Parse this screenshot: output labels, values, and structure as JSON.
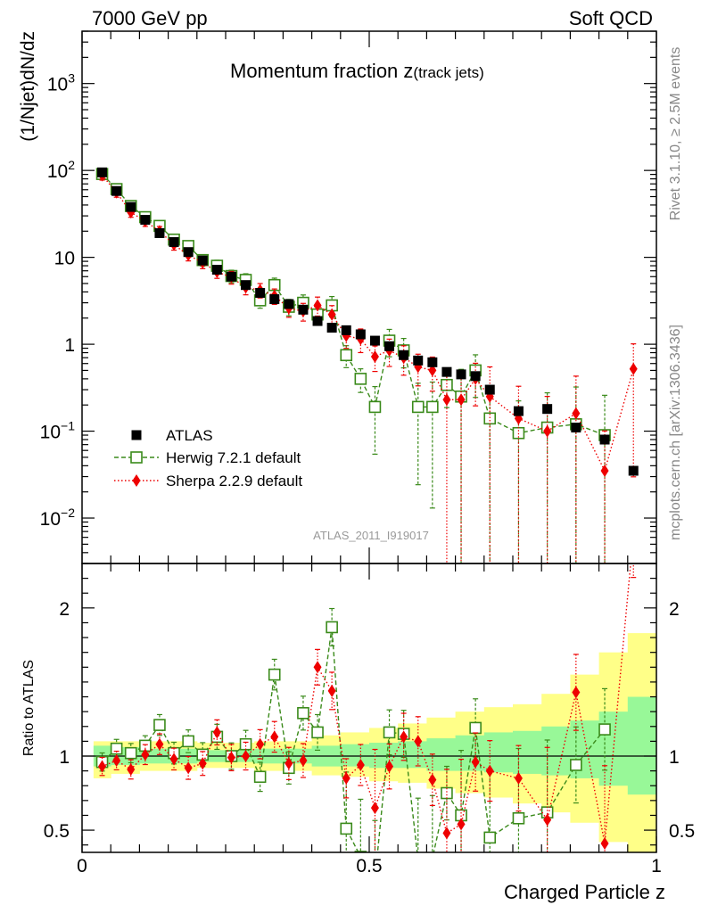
{
  "header": {
    "left": "7000 GeV pp",
    "right": "Soft QCD"
  },
  "side_text": {
    "rivet": "Rivet 3.1.10, ≥ 2.5M events",
    "mcplots": "mcplots.cern.ch [arXiv:1306.3436]"
  },
  "analysis_id": "ATLAS_2011_I919017",
  "chart_data": {
    "type": "scatter",
    "title": "Momentum fraction z(track jets)",
    "title_main": "Momentum fraction z",
    "title_sub": "(track jets)",
    "xlabel": "Charged Particle z",
    "ylabel": "(1/Njet)dN/dz",
    "ratio_ylabel": "Ratio to ATLAS",
    "yscale": "log",
    "xlim": [
      0,
      1
    ],
    "ylim": [
      0.003,
      4000
    ],
    "ratio_ylim": [
      0.35,
      2.3
    ],
    "x_ticks": [
      "0",
      "0.5",
      "1"
    ],
    "y_ticks": [
      {
        "value": 0.01,
        "base": "10",
        "exp": "−2"
      },
      {
        "value": 0.1,
        "base": "10",
        "exp": "−1"
      },
      {
        "value": 1,
        "base": "1",
        "exp": ""
      },
      {
        "value": 10,
        "base": "10",
        "exp": ""
      },
      {
        "value": 100,
        "base": "10",
        "exp": "2"
      },
      {
        "value": 1000,
        "base": "10",
        "exp": "3"
      }
    ],
    "ratio_ticks": [
      "0.5",
      "1",
      "2"
    ],
    "legend_position": "middle-left",
    "colors": {
      "atlas": "#000000",
      "herwig": "#3a8a1a",
      "sherpa": "#ee0000",
      "band_inner": "#98f898",
      "band_outer": "#ffff88"
    },
    "series": [
      {
        "name": "ATLAS",
        "x": [
          0.035,
          0.06,
          0.085,
          0.11,
          0.135,
          0.16,
          0.185,
          0.21,
          0.235,
          0.26,
          0.285,
          0.31,
          0.335,
          0.36,
          0.385,
          0.41,
          0.435,
          0.46,
          0.485,
          0.51,
          0.535,
          0.56,
          0.585,
          0.61,
          0.635,
          0.66,
          0.685,
          0.71,
          0.76,
          0.81,
          0.86,
          0.91,
          0.96
        ],
        "y": [
          95,
          58,
          38,
          27,
          19,
          15,
          11.5,
          9.2,
          7.2,
          6,
          4.8,
          3.9,
          3.3,
          2.9,
          2.5,
          1.85,
          1.55,
          1.45,
          1.3,
          1.1,
          0.95,
          0.75,
          0.65,
          0.62,
          0.48,
          0.45,
          0.43,
          0.3,
          0.17,
          0.18,
          0.11,
          0.08,
          0.035
        ]
      },
      {
        "name": "Herwig 7.2.1 default",
        "x": [
          0.035,
          0.06,
          0.085,
          0.11,
          0.135,
          0.16,
          0.185,
          0.21,
          0.235,
          0.26,
          0.285,
          0.31,
          0.335,
          0.36,
          0.385,
          0.41,
          0.435,
          0.46,
          0.485,
          0.51,
          0.535,
          0.56,
          0.585,
          0.61,
          0.635,
          0.66,
          0.685,
          0.71,
          0.76,
          0.81,
          0.86,
          0.91
        ],
        "y": [
          91,
          61,
          39,
          29,
          23,
          16,
          13.5,
          9.3,
          8,
          6.1,
          5.5,
          3.2,
          4.8,
          2.7,
          3,
          2.2,
          2.8,
          0.75,
          0.4,
          0.19,
          1.1,
          0.85,
          0.19,
          0.19,
          0.34,
          0.25,
          0.5,
          0.14,
          0.095,
          0.11,
          0.12,
          0.09
        ]
      },
      {
        "name": "Sherpa 2.2.9 default",
        "x": [
          0.035,
          0.06,
          0.085,
          0.11,
          0.135,
          0.16,
          0.185,
          0.21,
          0.235,
          0.26,
          0.285,
          0.31,
          0.335,
          0.36,
          0.385,
          0.41,
          0.435,
          0.46,
          0.485,
          0.51,
          0.535,
          0.56,
          0.585,
          0.61,
          0.635,
          0.66,
          0.685,
          0.71,
          0.76,
          0.81,
          0.86,
          0.91,
          0.96
        ],
        "y": [
          88,
          56,
          33,
          26,
          20,
          14,
          10.6,
          8.7,
          6.8,
          5.9,
          4.5,
          4.2,
          3.6,
          2.6,
          2.4,
          2.8,
          2.2,
          1.25,
          1.15,
          0.72,
          0.85,
          0.7,
          0.55,
          0.5,
          0.23,
          0.23,
          0.4,
          0.25,
          0.14,
          0.1,
          0.16,
          0.035,
          0.52
        ]
      }
    ],
    "ratio_series": [
      {
        "name": "Herwig 7.2.1 default",
        "x": [
          0.035,
          0.06,
          0.085,
          0.11,
          0.135,
          0.16,
          0.185,
          0.21,
          0.235,
          0.26,
          0.285,
          0.31,
          0.335,
          0.36,
          0.385,
          0.41,
          0.435,
          0.46,
          0.485,
          0.51,
          0.535,
          0.56,
          0.585,
          0.61,
          0.635,
          0.66,
          0.685,
          0.71,
          0.76,
          0.81,
          0.86,
          0.91
        ],
        "y": [
          0.96,
          1.05,
          1.02,
          1.07,
          1.21,
          1.02,
          1.1,
          1.01,
          1.13,
          1.0,
          1.08,
          0.86,
          1.55,
          0.92,
          1.29,
          1.16,
          1.87,
          0.51,
          0.32,
          0.17,
          1.16,
          1.15,
          0.3,
          0.31,
          0.75,
          0.6,
          1.19,
          0.45,
          0.58,
          0.62,
          0.94,
          1.18
        ]
      },
      {
        "name": "Sherpa 2.2.9 default",
        "x": [
          0.035,
          0.06,
          0.085,
          0.11,
          0.135,
          0.16,
          0.185,
          0.21,
          0.235,
          0.26,
          0.285,
          0.31,
          0.335,
          0.36,
          0.385,
          0.41,
          0.435,
          0.46,
          0.485,
          0.51,
          0.535,
          0.56,
          0.585,
          0.61,
          0.635,
          0.66,
          0.685,
          0.71,
          0.76,
          0.81,
          0.86,
          0.91,
          0.96
        ],
        "y": [
          0.93,
          0.97,
          0.91,
          1.01,
          1.08,
          0.98,
          0.92,
          0.95,
          1.16,
          0.99,
          1.0,
          1.08,
          1.13,
          0.95,
          0.97,
          1.6,
          1.44,
          0.85,
          0.94,
          0.65,
          0.93,
          1.13,
          1.1,
          0.84,
          0.48,
          0.54,
          0.96,
          0.9,
          0.85,
          0.57,
          1.43,
          0.41,
          2.5
        ]
      }
    ],
    "bands": {
      "x_edges": [
        0.02,
        0.05,
        0.1,
        0.2,
        0.3,
        0.4,
        0.45,
        0.5,
        0.55,
        0.6,
        0.65,
        0.7,
        0.75,
        0.8,
        0.85,
        0.9,
        0.95,
        1.0
      ],
      "inner_low": [
        0.93,
        0.94,
        0.95,
        0.96,
        0.95,
        0.93,
        0.93,
        0.92,
        0.92,
        0.9,
        0.9,
        0.89,
        0.88,
        0.87,
        0.85,
        0.8,
        0.74
      ],
      "inner_high": [
        1.07,
        1.06,
        1.05,
        1.04,
        1.05,
        1.07,
        1.08,
        1.09,
        1.1,
        1.12,
        1.14,
        1.16,
        1.17,
        1.2,
        1.24,
        1.3,
        1.4
      ],
      "outer_low": [
        0.85,
        0.88,
        0.9,
        0.92,
        0.9,
        0.87,
        0.86,
        0.83,
        0.82,
        0.78,
        0.75,
        0.72,
        0.68,
        0.62,
        0.55,
        0.42,
        0.35
      ],
      "outer_high": [
        1.1,
        1.1,
        1.1,
        1.09,
        1.1,
        1.14,
        1.16,
        1.19,
        1.22,
        1.26,
        1.3,
        1.33,
        1.35,
        1.42,
        1.55,
        1.7,
        1.83
      ]
    }
  }
}
